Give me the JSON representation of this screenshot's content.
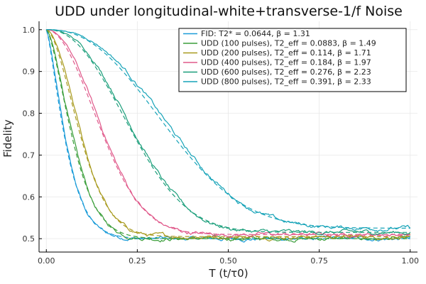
{
  "chart_data": {
    "type": "line",
    "title": "UDD under longitudinal-white+transverse-1/f Noise",
    "xlabel": "T (t/τ0)",
    "ylabel": "Fidelity",
    "xlim": [
      -0.02,
      1.02
    ],
    "ylim": [
      0.468,
      1.02
    ],
    "x_ticks": [
      0.0,
      0.25,
      0.5,
      0.75,
      1.0
    ],
    "x_tick_labels": [
      "0.00",
      "0.25",
      "0.50",
      "0.75",
      "1.00"
    ],
    "y_ticks": [
      0.5,
      0.6,
      0.7,
      0.8,
      0.9,
      1.0
    ],
    "y_tick_labels": [
      "0.5",
      "0.6",
      "0.7",
      "0.8",
      "0.9",
      "1.0"
    ],
    "grid": true,
    "legend_position": "top-right",
    "series": [
      {
        "name": "FID: T2* = 0.0644, β = 1.31",
        "color": "#1a9bd8",
        "T2": 0.0644,
        "beta": 1.31,
        "floor": 0.5
      },
      {
        "name": "UDD (100 pulses), T2_eff = 0.0883, β = 1.49",
        "color": "#3a9e3a",
        "T2": 0.0883,
        "beta": 1.49,
        "floor": 0.5
      },
      {
        "name": "UDD (200 pulses), T2_eff = 0.114, β = 1.71",
        "color": "#a89a1e",
        "T2": 0.114,
        "beta": 1.71,
        "floor": 0.505
      },
      {
        "name": "UDD (400 pulses), T2_eff = 0.184, β = 1.97",
        "color": "#e0588a",
        "T2": 0.184,
        "beta": 1.97,
        "floor": 0.51
      },
      {
        "name": "UDD (600 pulses), T2_eff = 0.276, β = 2.23",
        "color": "#1a9e7a",
        "T2": 0.276,
        "beta": 2.23,
        "floor": 0.515
      },
      {
        "name": "UDD (800 pulses), T2_eff = 0.391, β = 2.33",
        "color": "#16a3b8",
        "T2": 0.391,
        "beta": 2.33,
        "floor": 0.525
      }
    ]
  }
}
